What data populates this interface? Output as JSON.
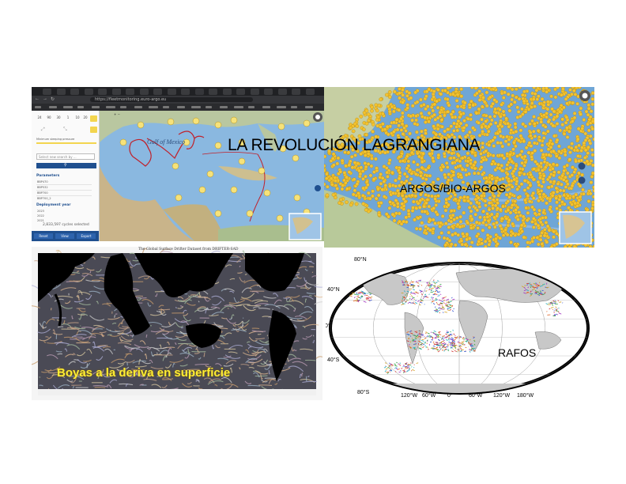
{
  "slide": {
    "title": "LA REVOLUCIÓN LAGRANGIANA",
    "labels": {
      "argos": "ARGOS/BIO-ARGOS",
      "drifters": "Boyas a la deriva en superficie",
      "rafos": "RAFOS"
    }
  },
  "browser": {
    "url": "https://fleetmonitoring.euro-argo.eu",
    "tabs": 20,
    "sidebar": {
      "stats": [
        "24",
        "90",
        "30",
        "1",
        "10",
        "20"
      ],
      "filter_label": "Minimum sleeping pressure",
      "search_placeholder": "Select new search by ...",
      "parameters_heading": "Parameters",
      "parameters": [
        "BBP470",
        "BBP532",
        "BBP700",
        "BBP700_2"
      ],
      "deployment_heading": "Deployment year",
      "years": [
        "2023",
        "2022",
        "2021"
      ],
      "cycles": "2,833,597 cycles selected",
      "buttons": [
        "Reset",
        "View",
        "Export"
      ]
    },
    "map_labels": [
      "Gulf of Mexico"
    ]
  },
  "drifter_map": {
    "caption": "The Global Surface Drifter Dataset from DRIFTER-SAD"
  },
  "rafos_map": {
    "lat_labels": [
      "80°N",
      "40°N",
      "0°",
      "40°S",
      "80°S"
    ],
    "lon_labels": [
      "120°W",
      "60°W",
      "0°",
      "60°W",
      "120°W",
      "180°W"
    ]
  },
  "colors": {
    "argos_dots": "#f2c230",
    "ocean": "#6fa6d6",
    "land": "#c8c8c8",
    "boyas_text": "#ffee33",
    "panel_blue": "#1f4f8f"
  }
}
